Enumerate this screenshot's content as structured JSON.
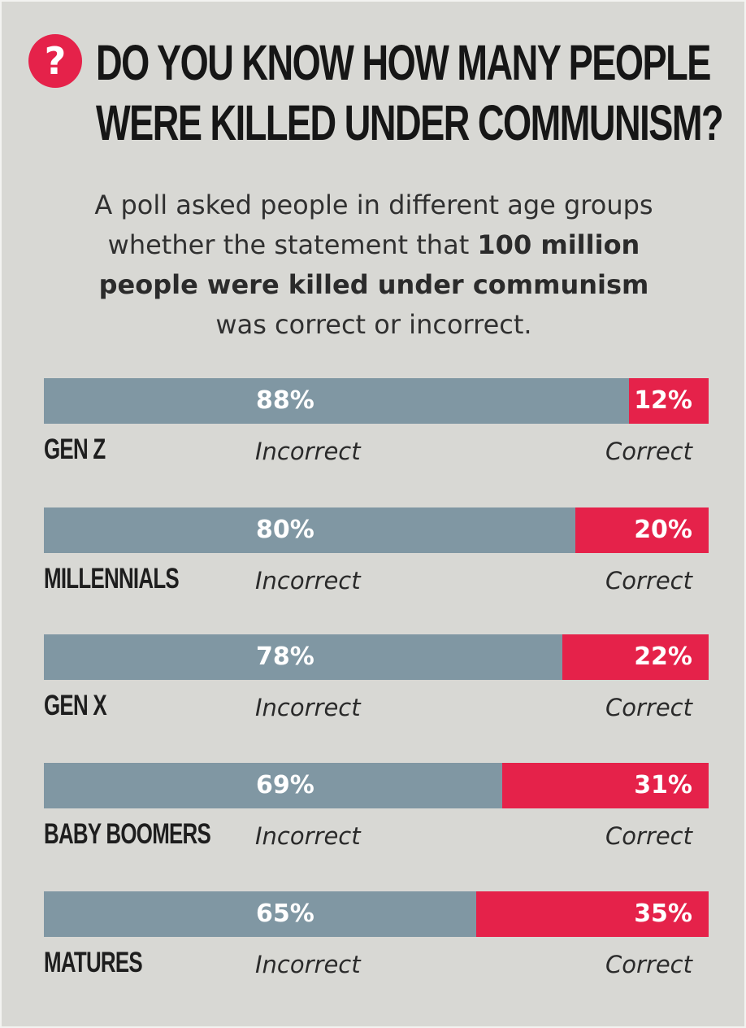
{
  "header": {
    "icon": "question-icon",
    "icon_glyph": "?",
    "title_line1": "DO YOU KNOW HOW MANY PEOPLE",
    "title_line2": "WERE KILLED UNDER COMMUNISM?"
  },
  "subtitle": {
    "line1": "A poll asked people in different age groups",
    "line2_start": "whether the statement that ",
    "line2_bold": "100 million",
    "line3_bold": "people were killed under communism",
    "line4": "was correct or incorrect."
  },
  "colors": {
    "incorrect": "#8097a3",
    "correct": "#e5224a",
    "background": "#d8d8d4"
  },
  "chart_data": {
    "type": "bar",
    "orientation": "horizontal",
    "stacked": true,
    "categories": [
      "GEN Z",
      "MILLENNIALS",
      "GEN X",
      "BABY BOOMERS",
      "MATURES"
    ],
    "series": [
      {
        "name": "Incorrect",
        "values": [
          88,
          80,
          78,
          69,
          65
        ],
        "labels": [
          "88%",
          "80%",
          "78%",
          "69%",
          "65%"
        ],
        "color": "#8097a3"
      },
      {
        "name": "Correct",
        "values": [
          12,
          20,
          22,
          31,
          35
        ],
        "labels": [
          "12%",
          "20%",
          "22%",
          "31%",
          "35%"
        ],
        "color": "#e5224a"
      }
    ],
    "unit": "%"
  }
}
